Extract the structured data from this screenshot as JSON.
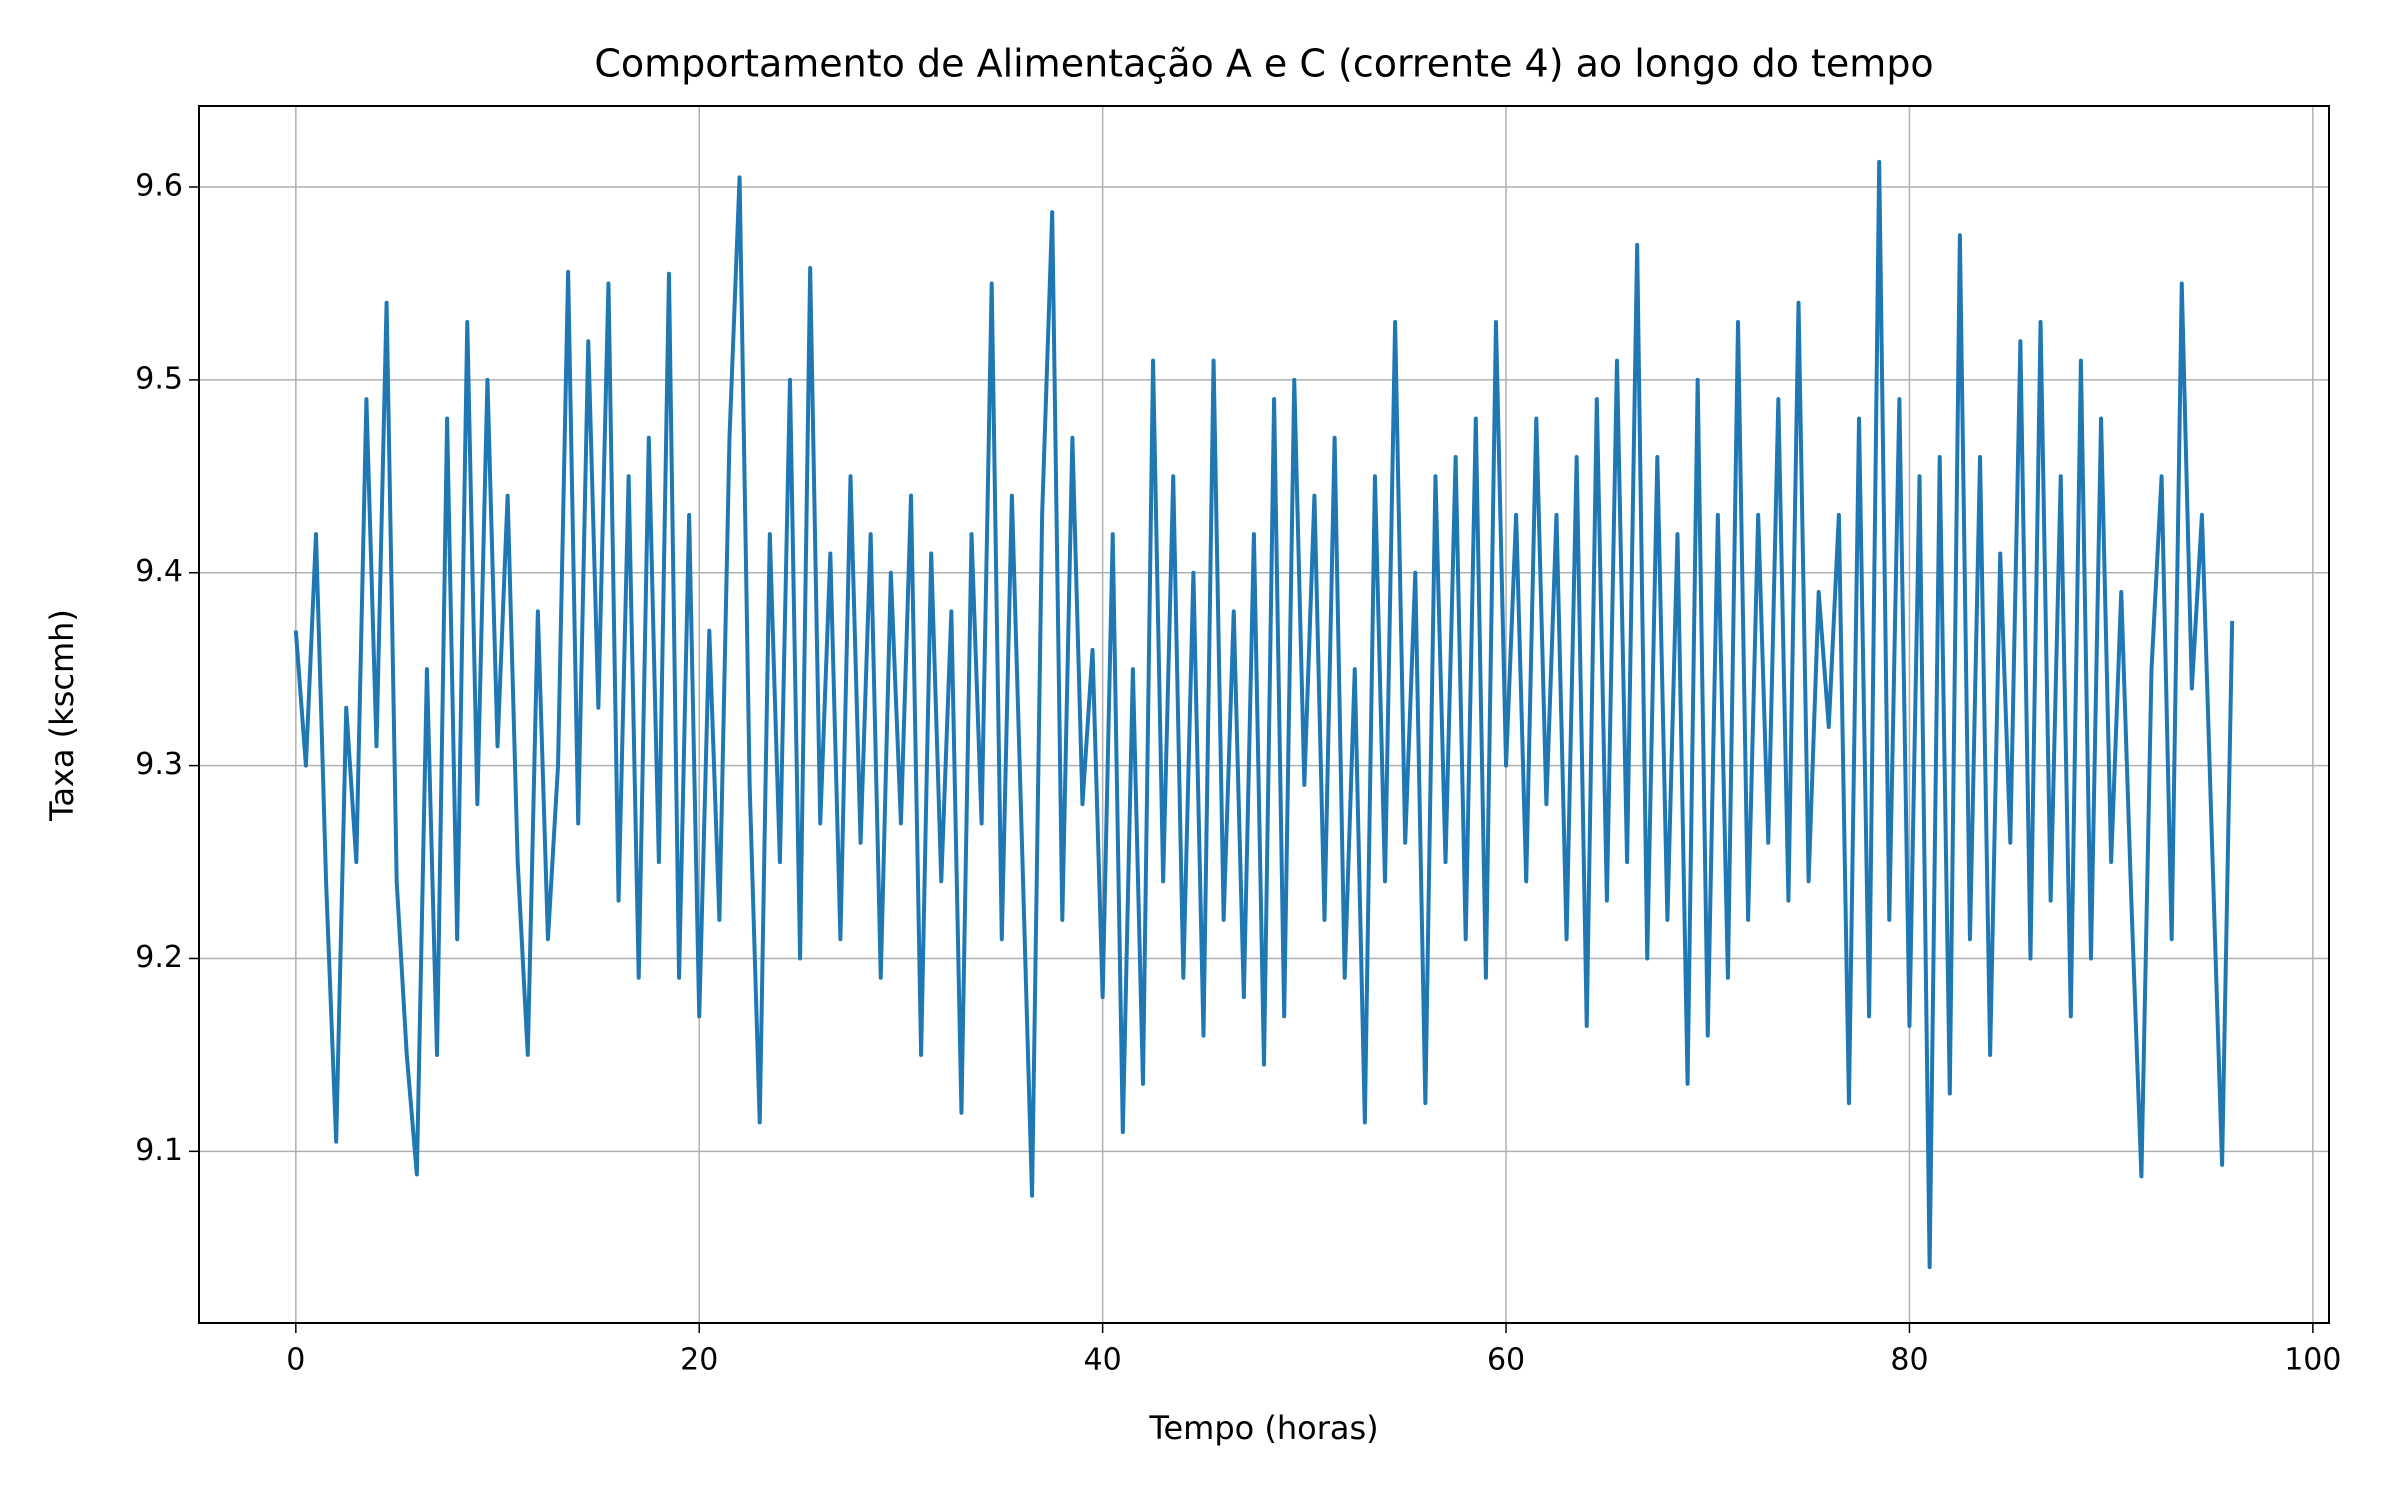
{
  "chart_data": {
    "type": "line",
    "title": "Comportamento de Alimentação A e C (corrente 4) ao longo do tempo",
    "xlabel": "Tempo (horas)",
    "ylabel": "Taxa (kscmh)",
    "color": "#1f77b4",
    "grid": true,
    "xlim": [
      -4.8,
      100.8
    ],
    "xticks": [
      0,
      20,
      40,
      60,
      80,
      100
    ],
    "ylim": [
      9.011,
      9.642
    ],
    "yticks": [
      9.1,
      9.2,
      9.3,
      9.4,
      9.5,
      9.6
    ],
    "x": [
      0,
      0.5,
      1,
      1.5,
      2,
      2.5,
      3,
      3.5,
      4,
      4.5,
      5,
      5.5,
      6,
      6.5,
      7,
      7.5,
      8,
      8.5,
      9,
      9.5,
      10,
      10.5,
      11,
      11.5,
      12,
      12.5,
      13,
      13.5,
      14,
      14.5,
      15,
      15.5,
      16,
      16.5,
      17,
      17.5,
      18,
      18.5,
      19,
      19.5,
      20,
      20.5,
      21,
      21.5,
      22,
      22.5,
      23,
      23.5,
      24,
      24.5,
      25,
      25.5,
      26,
      26.5,
      27,
      27.5,
      28,
      28.5,
      29,
      29.5,
      30,
      30.5,
      31,
      31.5,
      32,
      32.5,
      33,
      33.5,
      34,
      34.5,
      35,
      35.5,
      36,
      36.5,
      37,
      37.5,
      38,
      38.5,
      39,
      39.5,
      40,
      40.5,
      41,
      41.5,
      42,
      42.5,
      43,
      43.5,
      44,
      44.5,
      45,
      45.5,
      46,
      46.5,
      47,
      47.5,
      48,
      48.5,
      49,
      49.5,
      50,
      50.5,
      51,
      51.5,
      52,
      52.5,
      53,
      53.5,
      54,
      54.5,
      55,
      55.5,
      56,
      56.5,
      57,
      57.5,
      58,
      58.5,
      59,
      59.5,
      60,
      60.5,
      61,
      61.5,
      62,
      62.5,
      63,
      63.5,
      64,
      64.5,
      65,
      65.5,
      66,
      66.5,
      67,
      67.5,
      68,
      68.5,
      69,
      69.5,
      70,
      70.5,
      71,
      71.5,
      72,
      72.5,
      73,
      73.5,
      74,
      74.5,
      75,
      75.5,
      76,
      76.5,
      77,
      77.5,
      78,
      78.5,
      79,
      79.5,
      80,
      80.5,
      81,
      81.5,
      82,
      82.5,
      83,
      83.5,
      84,
      84.5,
      85,
      85.5,
      86,
      86.5,
      87,
      87.5,
      88,
      88.5,
      89,
      89.5,
      90,
      90.5,
      91,
      91.5,
      92,
      92.5,
      93,
      93.5,
      94,
      94.5,
      95,
      95.5,
      96
    ],
    "values": [
      9.37,
      9.3,
      9.42,
      9.24,
      9.105,
      9.33,
      9.25,
      9.49,
      9.31,
      9.54,
      9.24,
      9.15,
      9.088,
      9.35,
      9.15,
      9.48,
      9.21,
      9.53,
      9.28,
      9.5,
      9.31,
      9.44,
      9.25,
      9.15,
      9.38,
      9.21,
      9.3,
      9.556,
      9.27,
      9.52,
      9.33,
      9.55,
      9.23,
      9.45,
      9.19,
      9.47,
      9.25,
      9.555,
      9.19,
      9.43,
      9.17,
      9.37,
      9.22,
      9.47,
      9.605,
      9.29,
      9.115,
      9.42,
      9.25,
      9.5,
      9.2,
      9.558,
      9.27,
      9.41,
      9.21,
      9.45,
      9.26,
      9.42,
      9.19,
      9.4,
      9.27,
      9.44,
      9.15,
      9.41,
      9.24,
      9.38,
      9.12,
      9.42,
      9.27,
      9.55,
      9.21,
      9.44,
      9.26,
      9.077,
      9.43,
      9.587,
      9.22,
      9.47,
      9.28,
      9.36,
      9.18,
      9.42,
      9.11,
      9.35,
      9.135,
      9.51,
      9.24,
      9.45,
      9.19,
      9.4,
      9.16,
      9.51,
      9.22,
      9.38,
      9.18,
      9.42,
      9.145,
      9.49,
      9.17,
      9.5,
      9.29,
      9.44,
      9.22,
      9.47,
      9.19,
      9.35,
      9.115,
      9.45,
      9.24,
      9.53,
      9.26,
      9.4,
      9.125,
      9.45,
      9.25,
      9.46,
      9.21,
      9.48,
      9.19,
      9.53,
      9.3,
      9.43,
      9.24,
      9.48,
      9.28,
      9.43,
      9.21,
      9.46,
      9.165,
      9.49,
      9.23,
      9.51,
      9.25,
      9.57,
      9.2,
      9.46,
      9.22,
      9.42,
      9.135,
      9.5,
      9.16,
      9.43,
      9.19,
      9.53,
      9.22,
      9.43,
      9.26,
      9.49,
      9.23,
      9.54,
      9.24,
      9.39,
      9.32,
      9.43,
      9.125,
      9.48,
      9.17,
      9.613,
      9.22,
      9.49,
      9.165,
      9.45,
      9.04,
      9.46,
      9.13,
      9.575,
      9.21,
      9.46,
      9.15,
      9.41,
      9.26,
      9.52,
      9.2,
      9.53,
      9.23,
      9.45,
      9.17,
      9.51,
      9.2,
      9.48,
      9.25,
      9.39,
      9.23,
      9.087,
      9.35,
      9.45,
      9.21,
      9.55,
      9.34,
      9.43,
      9.26,
      9.093,
      9.375
    ]
  }
}
